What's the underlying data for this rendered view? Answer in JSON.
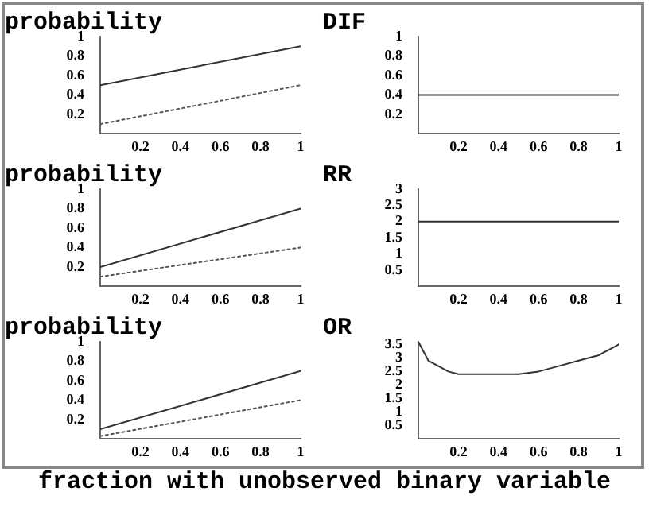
{
  "chart_data": [
    {
      "type": "line",
      "title": "probability",
      "xlim": [
        0,
        1
      ],
      "xticks": [
        0.2,
        0.4,
        0.6,
        0.8,
        1
      ],
      "ylim": [
        0,
        1
      ],
      "yticks": [
        0.2,
        0.4,
        0.6,
        0.8,
        1
      ],
      "grid": false,
      "legend": false,
      "series": [
        {
          "color": "#333333",
          "line_style": "solid",
          "x": [
            0,
            1
          ],
          "values": [
            0.5,
            0.9
          ]
        },
        {
          "color": "#555555",
          "line_style": "dotted",
          "x": [
            0,
            1
          ],
          "values": [
            0.1,
            0.5
          ]
        }
      ]
    },
    {
      "type": "line",
      "title": "DIF",
      "xlim": [
        0,
        1
      ],
      "xticks": [
        0.2,
        0.4,
        0.6,
        0.8,
        1
      ],
      "ylim": [
        0,
        1
      ],
      "yticks": [
        0.2,
        0.4,
        0.6,
        0.8,
        1
      ],
      "grid": false,
      "legend": false,
      "series": [
        {
          "color": "#333333",
          "line_style": "solid",
          "x": [
            0,
            1
          ],
          "values": [
            0.4,
            0.4
          ]
        }
      ]
    },
    {
      "type": "line",
      "title": "probability",
      "xlim": [
        0,
        1
      ],
      "xticks": [
        0.2,
        0.4,
        0.6,
        0.8,
        1
      ],
      "ylim": [
        0,
        1
      ],
      "yticks": [
        0.2,
        0.4,
        0.6,
        0.8,
        1
      ],
      "grid": false,
      "legend": false,
      "series": [
        {
          "color": "#333333",
          "line_style": "solid",
          "x": [
            0,
            1
          ],
          "values": [
            0.2,
            0.8
          ]
        },
        {
          "color": "#555555",
          "line_style": "dotted",
          "x": [
            0,
            1
          ],
          "values": [
            0.1,
            0.4
          ]
        }
      ]
    },
    {
      "type": "line",
      "title": "RR",
      "xlim": [
        0,
        1
      ],
      "xticks": [
        0.2,
        0.4,
        0.6,
        0.8,
        1
      ],
      "ylim": [
        0,
        3
      ],
      "yticks": [
        0.5,
        1,
        1.5,
        2,
        2.5,
        3
      ],
      "grid": false,
      "legend": false,
      "series": [
        {
          "color": "#333333",
          "line_style": "solid",
          "x": [
            0,
            1
          ],
          "values": [
            2,
            2
          ]
        }
      ]
    },
    {
      "type": "line",
      "title": "probability",
      "xlim": [
        0,
        1
      ],
      "xticks": [
        0.2,
        0.4,
        0.6,
        0.8,
        1
      ],
      "ylim": [
        0,
        1
      ],
      "yticks": [
        0.2,
        0.4,
        0.6,
        0.8,
        1
      ],
      "grid": false,
      "legend": false,
      "series": [
        {
          "color": "#333333",
          "line_style": "solid",
          "x": [
            0,
            1
          ],
          "values": [
            0.1,
            0.7
          ]
        },
        {
          "color": "#555555",
          "line_style": "dotted",
          "x": [
            0,
            1
          ],
          "values": [
            0.03,
            0.4
          ]
        }
      ]
    },
    {
      "type": "line",
      "title": "OR",
      "xlim": [
        0,
        1
      ],
      "xticks": [
        0.2,
        0.4,
        0.6,
        0.8,
        1
      ],
      "ylim": [
        0,
        3.6
      ],
      "yticks": [
        0.5,
        1,
        1.5,
        2,
        2.5,
        3,
        3.5
      ],
      "grid": false,
      "legend": false,
      "annotations": [
        "fraction with unobserved binary variable"
      ],
      "series": [
        {
          "color": "#333333",
          "line_style": "solid",
          "x": [
            0,
            0.05,
            0.1,
            0.15,
            0.2,
            0.3,
            0.4,
            0.5,
            0.6,
            0.7,
            0.8,
            0.9,
            1
          ],
          "values": [
            3.6,
            2.9,
            2.7,
            2.5,
            2.4,
            2.4,
            2.4,
            2.4,
            2.5,
            2.7,
            2.9,
            3.1,
            3.5
          ]
        }
      ]
    }
  ]
}
